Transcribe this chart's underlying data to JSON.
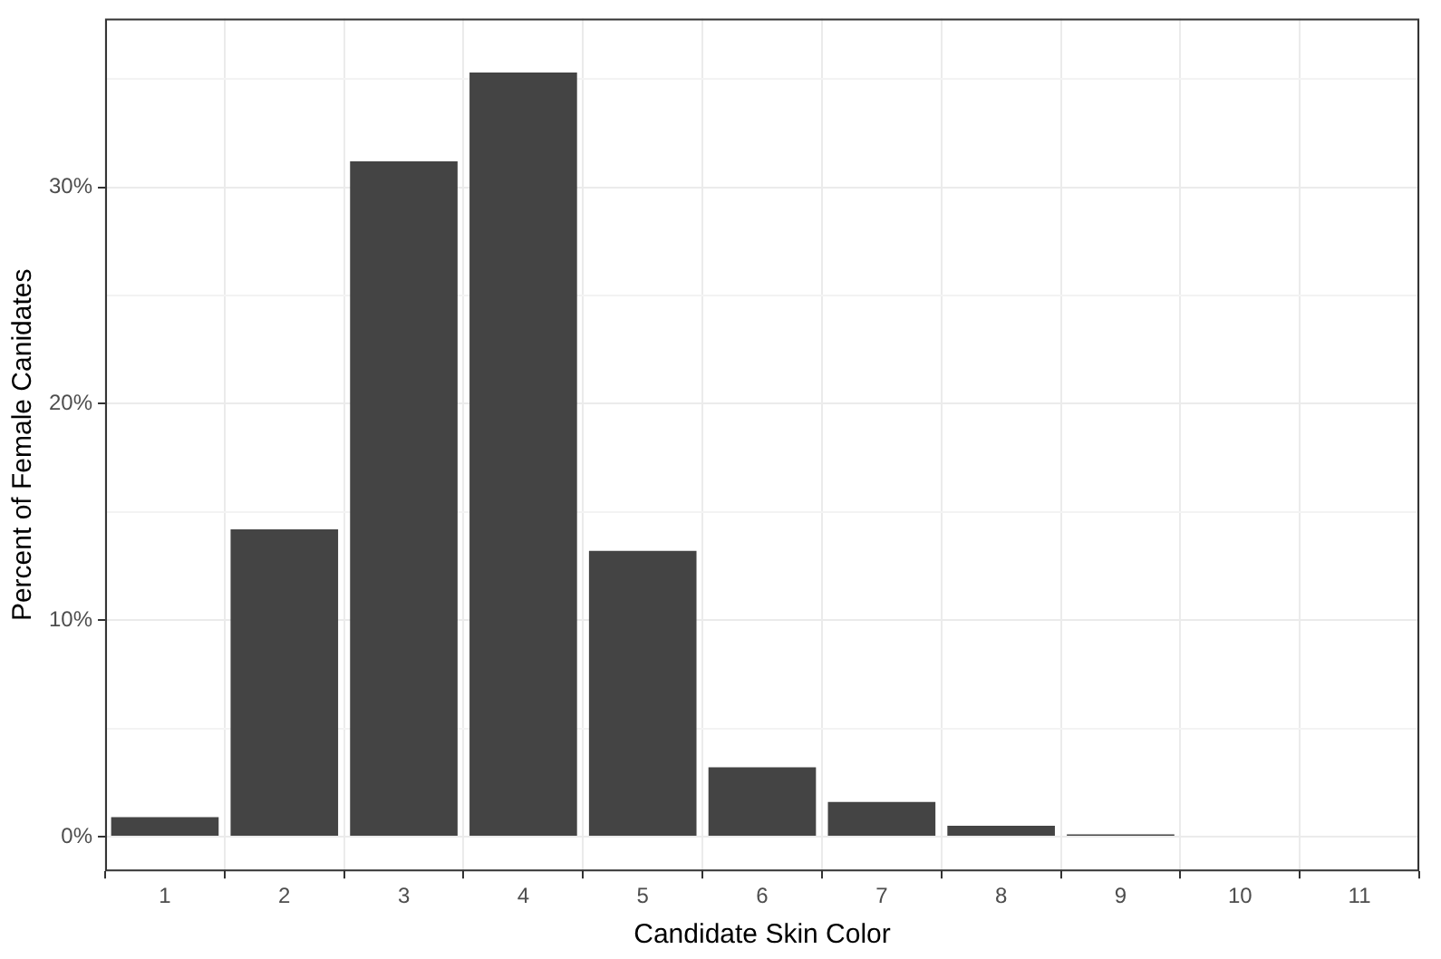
{
  "chart_data": {
    "type": "bar",
    "xlabel": "Candidate Skin Color",
    "ylabel": "Percent of Female Canidates",
    "categories": [
      "1",
      "2",
      "3",
      "4",
      "5",
      "6",
      "7",
      "8",
      "9",
      "10",
      "11"
    ],
    "values": [
      0.9,
      14.2,
      31.2,
      35.3,
      13.2,
      3.2,
      1.6,
      0.5,
      0.1,
      0,
      0
    ],
    "color": "#444444",
    "ylim": [
      -1.6,
      37.8
    ],
    "yticks": [
      {
        "value": 0,
        "label": "0%"
      },
      {
        "value": 5,
        "label": null
      },
      {
        "value": 10,
        "label": "10%"
      },
      {
        "value": 15,
        "label": null
      },
      {
        "value": 20,
        "label": "20%"
      },
      {
        "value": 25,
        "label": null
      },
      {
        "value": 30,
        "label": "30%"
      },
      {
        "value": 35,
        "label": null
      }
    ],
    "grid": true,
    "legend": false
  }
}
